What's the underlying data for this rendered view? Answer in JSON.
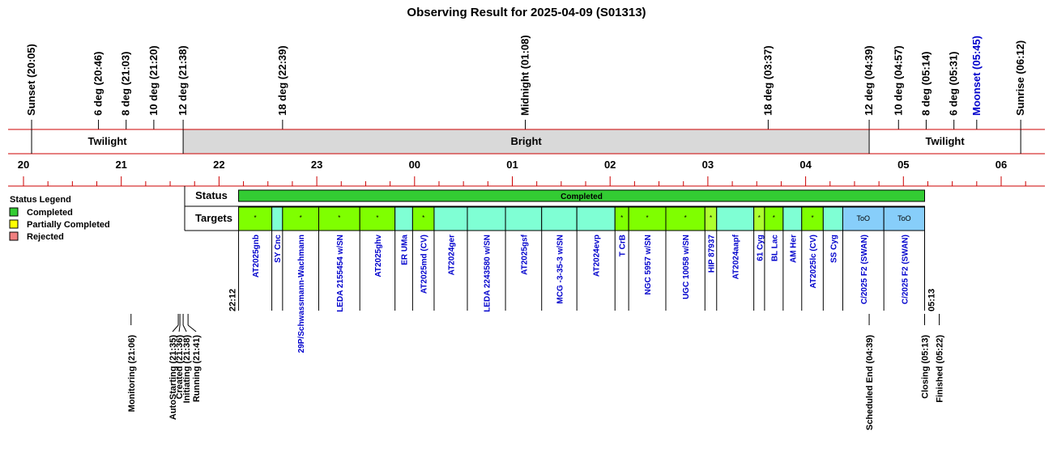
{
  "title": "Observing Result for 2025-04-09 (S01313)",
  "timeline": {
    "start_hour": 20,
    "end_hour": 30.2,
    "hour_labels": [
      "20",
      "21",
      "22",
      "23",
      "00",
      "01",
      "02",
      "03",
      "04",
      "05",
      "06"
    ],
    "hour_values": [
      20,
      21,
      22,
      23,
      24,
      25,
      26,
      27,
      28,
      29,
      30
    ]
  },
  "events": [
    {
      "label": "Sunset (20:05)",
      "time": 20.083,
      "color": "#000000"
    },
    {
      "label": "6 deg (20:46)",
      "time": 20.767,
      "color": "#000000"
    },
    {
      "label": "8 deg (21:03)",
      "time": 21.05,
      "color": "#000000"
    },
    {
      "label": "10 deg (21:20)",
      "time": 21.333,
      "color": "#000000"
    },
    {
      "label": "12 deg (21:38)",
      "time": 21.633,
      "color": "#000000"
    },
    {
      "label": "18 deg (22:39)",
      "time": 22.65,
      "color": "#000000"
    },
    {
      "label": "Midnight (01:08)",
      "time": 25.133,
      "color": "#000000"
    },
    {
      "label": "18 deg (03:37)",
      "time": 27.617,
      "color": "#000000"
    },
    {
      "label": "12 deg (04:39)",
      "time": 28.65,
      "color": "#000000"
    },
    {
      "label": "10 deg (04:57)",
      "time": 28.95,
      "color": "#000000"
    },
    {
      "label": "8 deg (05:14)",
      "time": 29.233,
      "color": "#000000"
    },
    {
      "label": "6 deg (05:31)",
      "time": 29.517,
      "color": "#000000"
    },
    {
      "label": "Moonset (05:45)",
      "time": 29.75,
      "color": "#0000cc"
    },
    {
      "label": "Sunrise (06:12)",
      "time": 30.2,
      "color": "#000000"
    }
  ],
  "phases": [
    {
      "label": "Twilight",
      "start": 20.083,
      "end": 21.633,
      "fill": "#ffffff"
    },
    {
      "label": "Bright",
      "start": 21.633,
      "end": 28.65,
      "fill": "#d9d9d9"
    },
    {
      "label": "Twilight",
      "start": 28.65,
      "end": 30.2,
      "fill": "#ffffff"
    }
  ],
  "legend": {
    "title": "Status Legend",
    "items": [
      {
        "label": "Completed",
        "color": "#33cc33"
      },
      {
        "label": "Partially Completed",
        "color": "#ffff00"
      },
      {
        "label": "Rejected",
        "color": "#f08080"
      }
    ]
  },
  "rows": {
    "status_label": "Status",
    "targets_label": "Targets"
  },
  "status_bar": {
    "label": "Completed",
    "start": 22.2,
    "end": 29.217,
    "color": "#33cc33"
  },
  "start_label": "22:12",
  "end_label": "05:13",
  "targets": [
    {
      "name": "AT2025gnb",
      "start": 22.2,
      "end": 22.54,
      "color": "#7fff00",
      "mark": "*"
    },
    {
      "name": "SY Cnc",
      "start": 22.54,
      "end": 22.65,
      "color": "#7fffd4",
      "mark": ""
    },
    {
      "name": "29P/Schwassmann-Wachmann",
      "start": 22.65,
      "end": 23.02,
      "color": "#7fff00",
      "mark": "*"
    },
    {
      "name": "LEDA 2155454 w/SN",
      "start": 23.02,
      "end": 23.44,
      "color": "#7fff00",
      "mark": "*"
    },
    {
      "name": "AT2025ghv",
      "start": 23.44,
      "end": 23.8,
      "color": "#7fff00",
      "mark": "*"
    },
    {
      "name": "ER UMa",
      "start": 23.8,
      "end": 23.98,
      "color": "#7fffd4",
      "mark": ""
    },
    {
      "name": "AT2025md (CV)",
      "start": 23.98,
      "end": 24.2,
      "color": "#7fff00",
      "mark": "*"
    },
    {
      "name": "AT2024ger",
      "start": 24.2,
      "end": 24.54,
      "color": "#7fffd4",
      "mark": ""
    },
    {
      "name": "LEDA 2243580 w/SN",
      "start": 24.54,
      "end": 24.93,
      "color": "#7fffd4",
      "mark": ""
    },
    {
      "name": "AT2025gsf",
      "start": 24.93,
      "end": 25.3,
      "color": "#7fffd4",
      "mark": ""
    },
    {
      "name": "MCG -3-35-3 w/SN",
      "start": 25.3,
      "end": 25.66,
      "color": "#7fffd4",
      "mark": ""
    },
    {
      "name": "AT2024evp",
      "start": 25.66,
      "end": 26.05,
      "color": "#7fffd4",
      "mark": ""
    },
    {
      "name": "T CrB",
      "start": 26.05,
      "end": 26.19,
      "color": "#7fff00",
      "mark": "*"
    },
    {
      "name": "NGC 5957 w/SN",
      "start": 26.19,
      "end": 26.57,
      "color": "#7fff00",
      "mark": "*"
    },
    {
      "name": "UGC 10058 w/SN",
      "start": 26.57,
      "end": 26.97,
      "color": "#7fff00",
      "mark": "*"
    },
    {
      "name": "HIP 87937",
      "start": 26.97,
      "end": 27.09,
      "color": "#adff2f",
      "mark": "*"
    },
    {
      "name": "AT2024aapf",
      "start": 27.09,
      "end": 27.47,
      "color": "#7fffd4",
      "mark": ""
    },
    {
      "name": "61 Cyg",
      "start": 27.47,
      "end": 27.58,
      "color": "#adff2f",
      "mark": "*"
    },
    {
      "name": "BL Lac",
      "start": 27.58,
      "end": 27.77,
      "color": "#7fff00",
      "mark": "*"
    },
    {
      "name": "AM Her",
      "start": 27.77,
      "end": 27.96,
      "color": "#7fffd4",
      "mark": ""
    },
    {
      "name": "AT2025lc (CV)",
      "start": 27.96,
      "end": 28.18,
      "color": "#7fff00",
      "mark": "*"
    },
    {
      "name": "SS Cyg",
      "start": 28.18,
      "end": 28.38,
      "color": "#7fffd4",
      "mark": ""
    },
    {
      "name": "C/2025 F2 (SWAN)",
      "start": 28.38,
      "end": 28.8,
      "color": "#87cefa",
      "mark": "ToO"
    },
    {
      "name": "C/2025 F2 (SWAN)",
      "start": 28.8,
      "end": 29.217,
      "color": "#87cefa",
      "mark": "ToO"
    }
  ],
  "milestones": [
    {
      "label": "Monitoring (21:06)",
      "time": 21.1
    },
    {
      "label": "AutoStarting (21:35)",
      "time": 21.583
    },
    {
      "label": "Created (21:36)",
      "time": 21.6
    },
    {
      "label": "Initiating (21:38)",
      "time": 21.633
    },
    {
      "label": "Running (21:41)",
      "time": 21.683
    },
    {
      "label": "Scheduled End (04:39)",
      "time": 28.65
    },
    {
      "label": "Closing (05:13)",
      "time": 29.217
    },
    {
      "label": "Finished (05:22)",
      "time": 29.367
    }
  ]
}
